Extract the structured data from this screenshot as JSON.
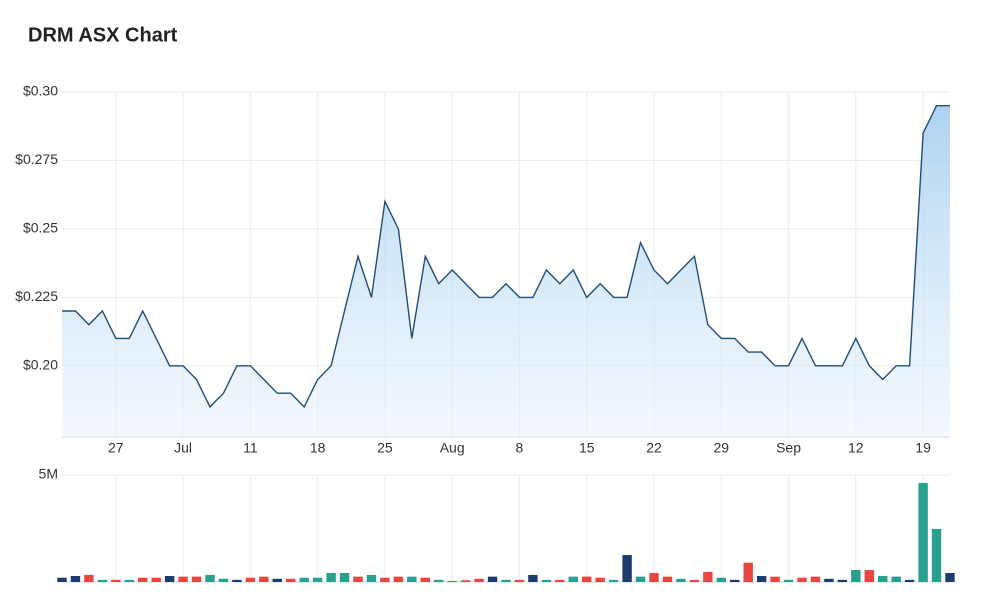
{
  "chart_data": {
    "type": "stock",
    "title": "DRM ASX Chart",
    "categories": [
      null,
      null,
      null,
      null,
      "27",
      null,
      null,
      null,
      null,
      "Jul",
      null,
      null,
      null,
      null,
      "11",
      null,
      null,
      null,
      null,
      "18",
      null,
      null,
      null,
      null,
      "25",
      null,
      null,
      null,
      null,
      "Aug",
      null,
      null,
      null,
      null,
      "8",
      null,
      null,
      null,
      null,
      "15",
      null,
      null,
      null,
      null,
      "22",
      null,
      null,
      null,
      null,
      "29",
      null,
      null,
      null,
      null,
      "Sep",
      null,
      null,
      null,
      null,
      "12",
      null,
      null,
      null,
      null,
      "19",
      null,
      null
    ],
    "price": {
      "color": "#1f4e79",
      "values": [
        0.22,
        0.22,
        0.215,
        0.22,
        0.21,
        0.21,
        0.22,
        0.21,
        0.2,
        0.2,
        0.195,
        0.185,
        0.19,
        0.2,
        0.2,
        0.195,
        0.19,
        0.19,
        0.185,
        0.195,
        0.2,
        0.22,
        0.24,
        0.225,
        0.26,
        0.25,
        0.21,
        0.24,
        0.23,
        0.235,
        0.23,
        0.225,
        0.225,
        0.23,
        0.225,
        0.225,
        0.235,
        0.23,
        0.235,
        0.225,
        0.23,
        0.225,
        0.225,
        0.245,
        0.235,
        0.23,
        0.235,
        0.24,
        0.215,
        0.21,
        0.21,
        0.205,
        0.205,
        0.2,
        0.2,
        0.21,
        0.2,
        0.2,
        0.2,
        0.21,
        0.2,
        0.195,
        0.2,
        0.2,
        0.285,
        0.295,
        0.295
      ]
    },
    "ylim": [
      0.174,
      0.3
    ],
    "yticks": [
      {
        "value": 0.2,
        "label": "$0.20"
      },
      {
        "value": 0.225,
        "label": "$0.225"
      },
      {
        "value": 0.25,
        "label": "$0.25"
      },
      {
        "value": 0.275,
        "label": "$0.275"
      },
      {
        "value": 0.3,
        "label": "$0.30"
      }
    ],
    "volume": {
      "values": [
        200000,
        280000,
        330000,
        100000,
        100000,
        100000,
        200000,
        200000,
        280000,
        250000,
        250000,
        330000,
        150000,
        100000,
        200000,
        250000,
        150000,
        150000,
        200000,
        200000,
        420000,
        420000,
        250000,
        330000,
        200000,
        250000,
        250000,
        200000,
        100000,
        50000,
        80000,
        150000,
        250000,
        100000,
        100000,
        330000,
        100000,
        100000,
        250000,
        250000,
        200000,
        100000,
        1260000,
        250000,
        420000,
        250000,
        150000,
        100000,
        470000,
        200000,
        100000,
        900000,
        280000,
        250000,
        100000,
        200000,
        250000,
        150000,
        100000,
        560000,
        560000,
        280000,
        250000,
        100000,
        4630000,
        2480000,
        420000
      ],
      "colors": [
        "#1c3b6e",
        "#1c3b6e",
        "#e8473f",
        "#27a08f",
        "#e8473f",
        "#27a08f",
        "#e8473f",
        "#e8473f",
        "#1c3b6e",
        "#e8473f",
        "#e8473f",
        "#27a08f",
        "#27a08f",
        "#1c3b6e",
        "#e8473f",
        "#e8473f",
        "#1c3b6e",
        "#e8473f",
        "#27a08f",
        "#27a08f",
        "#27a08f",
        "#27a08f",
        "#e8473f",
        "#27a08f",
        "#e8473f",
        "#e8473f",
        "#27a08f",
        "#e8473f",
        "#27a08f",
        "#e8473f",
        "#e8473f",
        "#e8473f",
        "#1c3b6e",
        "#27a08f",
        "#e8473f",
        "#1c3b6e",
        "#27a08f",
        "#e8473f",
        "#27a08f",
        "#e8473f",
        "#e8473f",
        "#27a08f",
        "#1c3b6e",
        "#27a08f",
        "#e8473f",
        "#e8473f",
        "#27a08f",
        "#e8473f",
        "#e8473f",
        "#27a08f",
        "#1c3b6e",
        "#e8473f",
        "#1c3b6e",
        "#e8473f",
        "#27a08f",
        "#e8473f",
        "#e8473f",
        "#1c3b6e",
        "#1c3b6e",
        "#27a08f",
        "#e8473f",
        "#27a08f",
        "#27a08f",
        "#1c3b6e",
        "#27a08f",
        "#27a08f",
        "#1c3b6e"
      ]
    },
    "vlim": [
      0,
      5000000
    ],
    "vticks": [
      {
        "value": 5000000,
        "label": "5M"
      }
    ],
    "grid": true
  }
}
